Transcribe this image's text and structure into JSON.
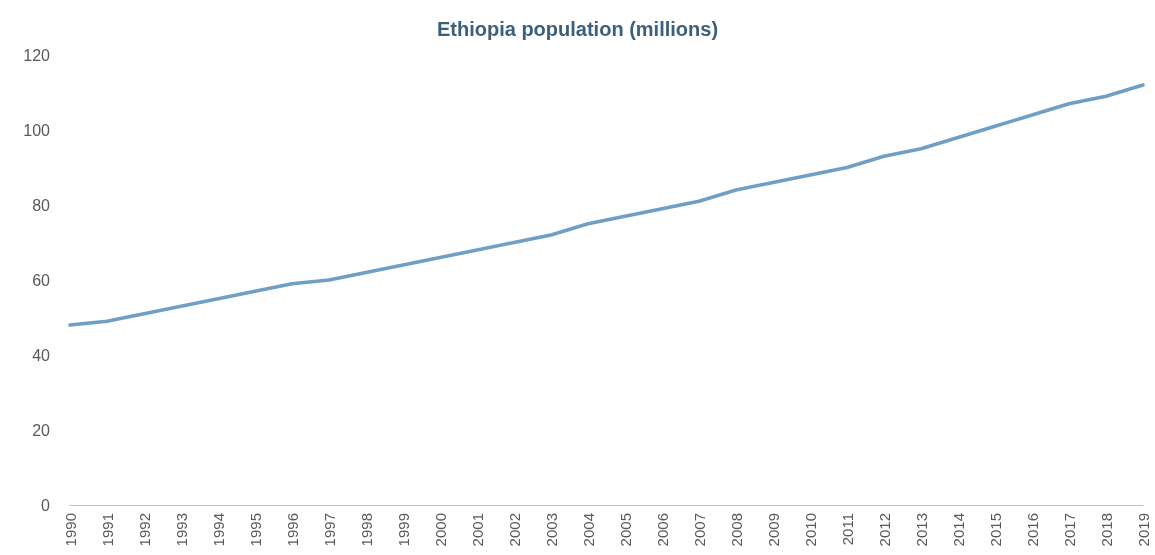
{
  "chart_data": {
    "type": "line",
    "title": "Ethiopia population (millions)",
    "categories": [
      "1990",
      "1991",
      "1992",
      "1993",
      "1994",
      "1995",
      "1996",
      "1997",
      "1998",
      "1999",
      "2000",
      "2001",
      "2002",
      "2003",
      "2004",
      "2005",
      "2006",
      "2007",
      "2008",
      "2009",
      "2010",
      "2011",
      "2012",
      "2013",
      "2014",
      "2015",
      "2016",
      "2017",
      "2018",
      "2019"
    ],
    "series": [
      {
        "color": "#6f9fc4",
        "values": [
          48,
          49,
          51,
          53,
          55,
          57,
          59,
          60,
          62,
          64,
          66,
          68,
          70,
          72,
          75,
          77,
          79,
          81,
          84,
          86,
          88,
          90,
          93,
          95,
          98,
          101,
          104,
          107,
          109,
          112
        ]
      }
    ],
    "ylim": [
      0,
      120
    ],
    "yticks": [
      0,
      20,
      40,
      60,
      80,
      100,
      120
    ],
    "grid": false,
    "marker": "none",
    "line_style": "solid"
  }
}
